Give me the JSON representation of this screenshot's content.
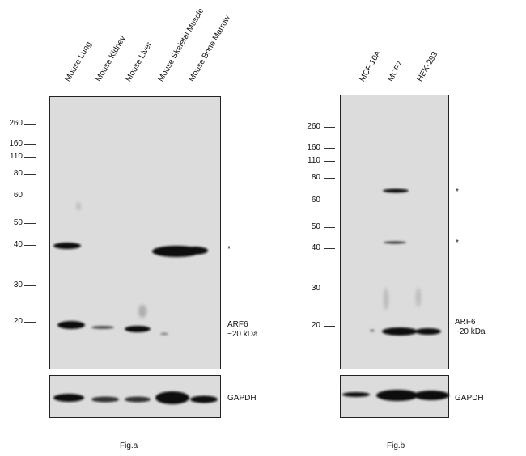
{
  "figA": {
    "lanes": [
      "Mouse Lung",
      "Mouse Kidney",
      "Mouse Liver",
      "Mouse Skeletal Muscle",
      "Mouse Bone Marrow"
    ],
    "markers": [
      "260",
      "160",
      "110",
      "80",
      "60",
      "50",
      "40",
      "30",
      "20"
    ],
    "star": "*",
    "target_name": "ARF6",
    "target_size": "~20 kDa",
    "loading_control": "GAPDH",
    "caption": "Fig.a"
  },
  "figB": {
    "lanes": [
      "MCF 10A",
      "MCF7",
      "HEK-293"
    ],
    "markers": [
      "260",
      "160",
      "110",
      "80",
      "60",
      "50",
      "40",
      "30",
      "20"
    ],
    "star1": "*",
    "star2": "*",
    "target_name": "ARF6",
    "target_size": "~20 kDa",
    "loading_control": "GAPDH",
    "caption": "Fig.b"
  }
}
